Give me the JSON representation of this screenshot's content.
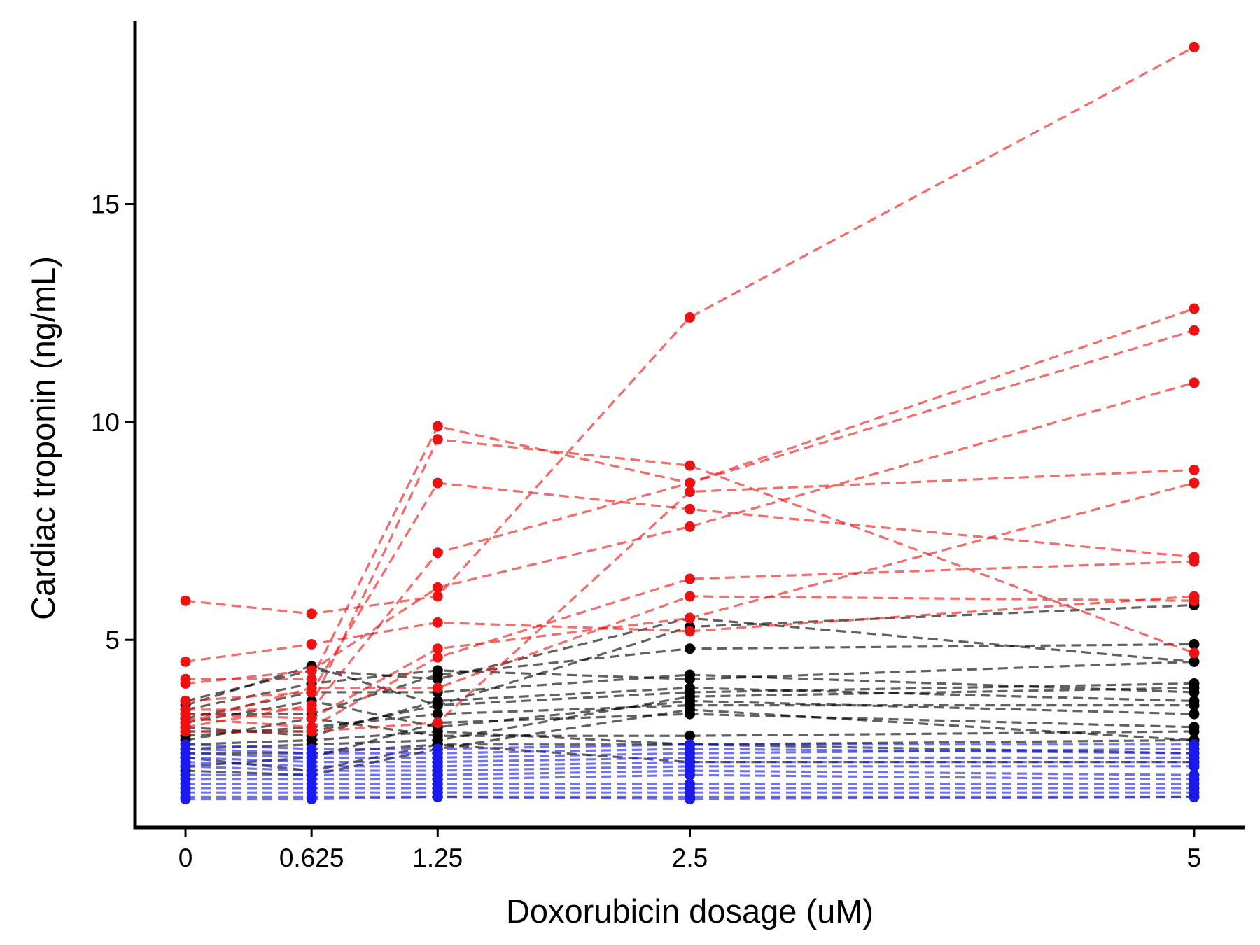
{
  "chart_data": {
    "type": "line",
    "title": "",
    "xlabel": "Doxorubicin dosage (uM)",
    "ylabel": "Cardiac troponin (ng/mL)",
    "x": [
      0,
      0.625,
      1.25,
      2.5,
      5
    ],
    "x_tick_labels": [
      "0",
      "0.625",
      "1.25",
      "2.5",
      "5"
    ],
    "y_ticks": [
      5,
      10,
      15
    ],
    "y_tick_labels": [
      "5",
      "10",
      "15"
    ],
    "xlim": [
      -0.25,
      5.25
    ],
    "ylim": [
      0.7,
      19.2
    ],
    "grid": false,
    "line_style": "dashed",
    "colors": {
      "high": "#ee1111",
      "mid": "#000000",
      "low": "#1a1aee"
    },
    "series": [
      {
        "group": "high",
        "values": [
          5.9,
          5.6,
          6.0,
          12.4,
          18.6
        ]
      },
      {
        "group": "high",
        "values": [
          4.5,
          4.9,
          5.4,
          5.2,
          6.0
        ]
      },
      {
        "group": "high",
        "values": [
          4.1,
          4.1,
          9.9,
          8.6,
          12.6
        ]
      },
      {
        "group": "high",
        "values": [
          4.0,
          4.3,
          6.2,
          7.6,
          10.9
        ]
      },
      {
        "group": "high",
        "values": [
          3.6,
          3.8,
          8.6,
          8.0,
          6.9
        ]
      },
      {
        "group": "high",
        "values": [
          3.4,
          3.4,
          7.0,
          8.6,
          12.1
        ]
      },
      {
        "group": "high",
        "values": [
          3.3,
          3.2,
          4.8,
          5.5,
          8.6
        ]
      },
      {
        "group": "high",
        "values": [
          3.2,
          3.0,
          4.6,
          6.4,
          6.8
        ]
      },
      {
        "group": "high",
        "values": [
          3.0,
          3.5,
          9.6,
          9.0,
          4.7
        ]
      },
      {
        "group": "high",
        "values": [
          3.1,
          3.9,
          3.9,
          6.0,
          5.9
        ]
      },
      {
        "group": "high",
        "values": [
          2.9,
          2.9,
          3.1,
          8.4,
          8.9
        ]
      },
      {
        "group": "mid",
        "values": [
          3.6,
          4.3,
          4.1,
          5.5,
          4.5
        ]
      },
      {
        "group": "mid",
        "values": [
          3.5,
          4.4,
          3.5,
          5.3,
          5.8
        ]
      },
      {
        "group": "mid",
        "values": [
          3.4,
          4.0,
          4.3,
          4.1,
          4.5
        ]
      },
      {
        "group": "mid",
        "values": [
          3.3,
          3.3,
          4.2,
          4.8,
          4.9
        ]
      },
      {
        "group": "mid",
        "values": [
          3.2,
          3.8,
          3.8,
          4.2,
          3.8
        ]
      },
      {
        "group": "mid",
        "values": [
          3.1,
          3.6,
          3.0,
          3.6,
          3.3
        ]
      },
      {
        "group": "mid",
        "values": [
          3.0,
          2.8,
          3.6,
          3.9,
          3.6
        ]
      },
      {
        "group": "mid",
        "values": [
          2.8,
          3.0,
          3.3,
          3.5,
          3.5
        ]
      },
      {
        "group": "mid",
        "values": [
          2.7,
          3.2,
          2.8,
          2.8,
          2.9
        ]
      },
      {
        "group": "mid",
        "values": [
          2.6,
          2.7,
          2.9,
          2.6,
          2.7
        ]
      },
      {
        "group": "mid",
        "values": [
          2.5,
          2.6,
          2.7,
          3.7,
          3.9
        ]
      },
      {
        "group": "mid",
        "values": [
          2.4,
          2.4,
          2.6,
          2.6,
          2.4
        ]
      },
      {
        "group": "mid",
        "values": [
          2.3,
          2.0,
          2.6,
          2.2,
          2.2
        ]
      },
      {
        "group": "mid",
        "values": [
          2.1,
          2.3,
          3.1,
          3.3,
          3.0
        ]
      },
      {
        "group": "mid",
        "values": [
          2.0,
          1.9,
          2.5,
          3.4,
          2.7
        ]
      },
      {
        "group": "mid",
        "values": [
          2.9,
          2.9,
          3.5,
          3.8,
          4.0
        ]
      },
      {
        "group": "low",
        "values": [
          2.6,
          2.5,
          2.5,
          2.6,
          2.6
        ]
      },
      {
        "group": "low",
        "values": [
          2.5,
          2.4,
          2.4,
          2.5,
          2.4
        ]
      },
      {
        "group": "low",
        "values": [
          2.4,
          2.3,
          2.3,
          2.4,
          2.5
        ]
      },
      {
        "group": "low",
        "values": [
          2.3,
          2.2,
          2.2,
          2.3,
          2.3
        ]
      },
      {
        "group": "low",
        "values": [
          2.2,
          2.1,
          2.1,
          2.2,
          2.2
        ]
      },
      {
        "group": "low",
        "values": [
          2.1,
          2.0,
          2.0,
          2.1,
          2.1
        ]
      },
      {
        "group": "low",
        "values": [
          1.9,
          1.9,
          1.9,
          2.0,
          1.9
        ]
      },
      {
        "group": "low",
        "values": [
          1.8,
          1.8,
          1.8,
          1.9,
          1.8
        ]
      },
      {
        "group": "low",
        "values": [
          1.7,
          1.7,
          1.7,
          1.7,
          1.7
        ]
      },
      {
        "group": "low",
        "values": [
          1.6,
          1.6,
          1.6,
          1.6,
          1.6
        ]
      },
      {
        "group": "low",
        "values": [
          1.5,
          1.5,
          1.5,
          1.5,
          1.5
        ]
      },
      {
        "group": "low",
        "values": [
          1.4,
          1.4,
          1.4,
          1.4,
          1.4
        ]
      },
      {
        "group": "low",
        "values": [
          1.35,
          1.35,
          1.4,
          1.35,
          1.4
        ]
      }
    ]
  }
}
